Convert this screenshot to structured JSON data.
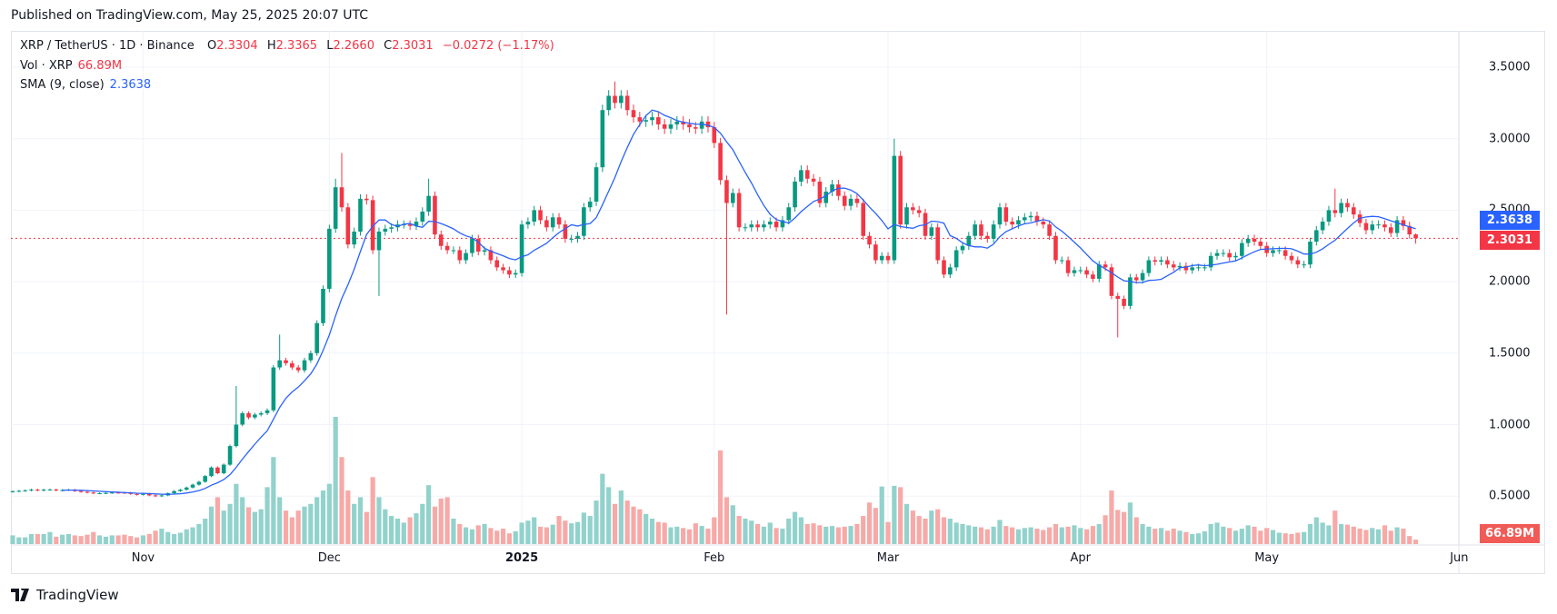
{
  "header": {
    "published": "Published on TradingView.com, May 25, 2025 20:07 UTC"
  },
  "legend": {
    "symbol": "XRP / TetherUS · 1D · Binance",
    "o_label": "O",
    "o": "2.3304",
    "h_label": "H",
    "h": "2.3365",
    "l_label": "L",
    "l": "2.2660",
    "c_label": "C",
    "c": "2.3031",
    "change": "−0.0272 (−1.17%)",
    "vol_label": "Vol · XRP",
    "vol": "66.89M",
    "sma_label": "SMA (9, close)",
    "sma": "2.3638"
  },
  "badges": {
    "sma": "2.3638",
    "price": "2.3031",
    "volume": "66.89M"
  },
  "footer": {
    "brand": "TradingView"
  },
  "colors": {
    "up": "#089981",
    "down": "#f23645",
    "sma": "#2962ff",
    "vol_up": "#92d2cc",
    "vol_down": "#f7a9a7",
    "vol_badge": "#f05b57"
  },
  "chart_data": {
    "type": "candlestick",
    "title": "XRP / TetherUS · 1D · Binance",
    "start_date": "2024-10-11",
    "end_date": "2025-05-25",
    "y_ticks": [
      "3.5000",
      "3.0000",
      "2.5000",
      "2.0000",
      "1.5000",
      "1.0000",
      "0.5000"
    ],
    "y_tick_values": [
      3.5,
      3.0,
      2.5,
      2.0,
      1.5,
      1.0,
      0.5
    ],
    "x_ticks": [
      {
        "label": "Nov",
        "day": 21,
        "bold": false
      },
      {
        "label": "Dec",
        "day": 51,
        "bold": false
      },
      {
        "label": "2025",
        "day": 82,
        "bold": true
      },
      {
        "label": "Feb",
        "day": 113,
        "bold": false
      },
      {
        "label": "Mar",
        "day": 141,
        "bold": false
      },
      {
        "label": "Apr",
        "day": 172,
        "bold": false
      },
      {
        "label": "May",
        "day": 202,
        "bold": false
      },
      {
        "label": "Jun",
        "day": 233,
        "bold": false
      }
    ],
    "first_open": 0.53,
    "close": [
      0.534,
      0.537,
      0.54,
      0.545,
      0.54,
      0.545,
      0.546,
      0.54,
      0.542,
      0.545,
      0.535,
      0.53,
      0.525,
      0.52,
      0.52,
      0.522,
      0.525,
      0.524,
      0.523,
      0.515,
      0.51,
      0.515,
      0.505,
      0.5,
      0.505,
      0.52,
      0.535,
      0.545,
      0.56,
      0.58,
      0.6,
      0.64,
      0.7,
      0.66,
      0.72,
      0.85,
      1.0,
      1.08,
      1.05,
      1.07,
      1.08,
      1.1,
      1.4,
      1.45,
      1.43,
      1.4,
      1.38,
      1.45,
      1.5,
      1.71,
      1.95,
      2.37,
      2.66,
      2.52,
      2.26,
      2.35,
      2.58,
      2.57,
      2.22,
      2.35,
      2.37,
      2.38,
      2.4,
      2.4,
      2.39,
      2.42,
      2.49,
      2.6,
      2.33,
      2.25,
      2.22,
      2.22,
      2.15,
      2.2,
      2.3,
      2.21,
      2.22,
      2.15,
      2.1,
      2.08,
      2.05,
      2.06,
      2.4,
      2.42,
      2.5,
      2.43,
      2.38,
      2.45,
      2.4,
      2.3,
      2.3,
      2.32,
      2.52,
      2.56,
      2.8,
      3.2,
      3.3,
      3.25,
      3.3,
      3.2,
      3.15,
      3.12,
      3.13,
      3.15,
      3.1,
      3.07,
      3.1,
      3.12,
      3.1,
      3.08,
      3.07,
      3.12,
      3.08,
      2.97,
      2.71,
      2.55,
      2.62,
      2.38,
      2.38,
      2.4,
      2.38,
      2.4,
      2.42,
      2.38,
      2.43,
      2.52,
      2.7,
      2.78,
      2.72,
      2.7,
      2.55,
      2.63,
      2.68,
      2.6,
      2.53,
      2.58,
      2.55,
      2.32,
      2.26,
      2.15,
      2.18,
      2.15,
      2.88,
      2.4,
      2.52,
      2.5,
      2.48,
      2.32,
      2.38,
      2.15,
      2.05,
      2.1,
      2.22,
      2.25,
      2.32,
      2.4,
      2.32,
      2.3,
      2.4,
      2.52,
      2.42,
      2.4,
      2.43,
      2.45,
      2.46,
      2.42,
      2.4,
      2.32,
      2.15,
      2.15,
      2.06,
      2.08,
      2.08,
      2.05,
      2.02,
      2.12,
      2.1,
      1.9,
      1.88,
      1.83,
      2.03,
      2.01,
      2.06,
      2.15,
      2.14,
      2.15,
      2.12,
      2.1,
      2.11,
      2.08,
      2.1,
      2.1,
      2.1,
      2.18,
      2.2,
      2.2,
      2.17,
      2.18,
      2.27,
      2.3,
      2.28,
      2.25,
      2.2,
      2.22,
      2.22,
      2.18,
      2.15,
      2.12,
      2.12,
      2.28,
      2.36,
      2.42,
      2.5,
      2.48,
      2.55,
      2.52,
      2.47,
      2.41,
      2.36,
      2.4,
      2.4,
      2.38,
      2.34,
      2.43,
      2.39,
      2.3304,
      2.3031
    ],
    "notable_wicks": [
      {
        "day": 36,
        "high": 1.27
      },
      {
        "day": 43,
        "high": 1.63
      },
      {
        "day": 52,
        "high": 2.72
      },
      {
        "day": 53,
        "high": 2.9
      },
      {
        "day": 59,
        "low": 1.9
      },
      {
        "day": 67,
        "high": 2.72
      },
      {
        "day": 97,
        "high": 3.4
      },
      {
        "day": 115,
        "low": 1.77
      },
      {
        "day": 142,
        "high": 3.0
      },
      {
        "day": 178,
        "low": 1.61
      },
      {
        "day": 213,
        "high": 2.65
      },
      {
        "day": 226,
        "high": 2.3365,
        "low": 2.266
      }
    ],
    "volume_millions": [
      130,
      100,
      100,
      150,
      150,
      150,
      180,
      110,
      140,
      150,
      130,
      120,
      140,
      180,
      130,
      110,
      130,
      130,
      140,
      120,
      100,
      130,
      150,
      200,
      230,
      180,
      150,
      170,
      220,
      250,
      300,
      380,
      560,
      700,
      500,
      600,
      900,
      700,
      550,
      480,
      520,
      850,
      1300,
      700,
      500,
      400,
      500,
      560,
      600,
      700,
      800,
      900,
      1900,
      1300,
      800,
      600,
      700,
      480,
      1000,
      700,
      520,
      420,
      380,
      320,
      400,
      460,
      600,
      880,
      560,
      680,
      700,
      380,
      300,
      250,
      220,
      280,
      300,
      240,
      200,
      230,
      160,
      190,
      320,
      350,
      400,
      260,
      250,
      290,
      420,
      350,
      310,
      330,
      470,
      420,
      650,
      1050,
      850,
      600,
      800,
      650,
      560,
      520,
      450,
      380,
      330,
      320,
      250,
      260,
      240,
      220,
      310,
      270,
      230,
      400,
      1400,
      700,
      580,
      420,
      380,
      350,
      300,
      260,
      320,
      240,
      230,
      380,
      480,
      400,
      300,
      310,
      280,
      260,
      270,
      250,
      260,
      270,
      300,
      420,
      620,
      540,
      860,
      330,
      870,
      850,
      600,
      500,
      420,
      380,
      500,
      520,
      400,
      380,
      320,
      300,
      280,
      260,
      250,
      220,
      260,
      360,
      270,
      250,
      220,
      240,
      250,
      230,
      210,
      250,
      300,
      250,
      260,
      280,
      240,
      220,
      270,
      300,
      430,
      800,
      510,
      480,
      620,
      400,
      300,
      260,
      230,
      240,
      200,
      230,
      200,
      180,
      150,
      160,
      190,
      300,
      320,
      260,
      240,
      200,
      230,
      280,
      260,
      200,
      240,
      210,
      170,
      160,
      150,
      170,
      180,
      300,
      400,
      320,
      280,
      500,
      300,
      290,
      260,
      230,
      210,
      240,
      220,
      280,
      200,
      250,
      230,
      120,
      66.89
    ],
    "sma_period": 9,
    "last_price": 2.3031,
    "last_sma": 2.3638,
    "legend": "top-left"
  }
}
